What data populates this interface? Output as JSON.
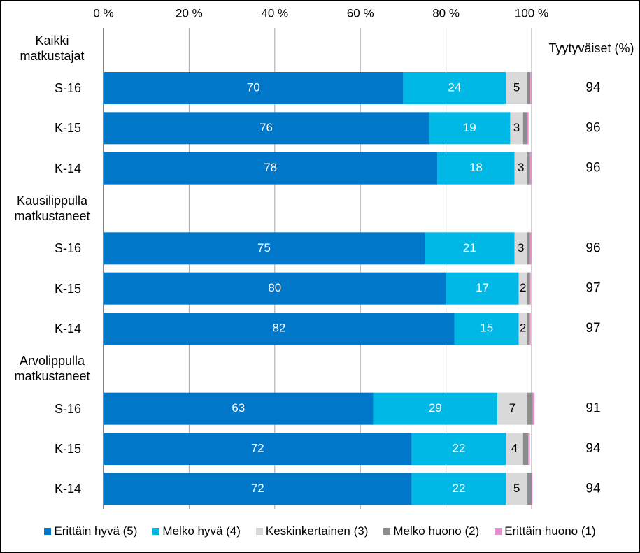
{
  "chart_data": {
    "type": "stacked_barh",
    "categories": [
      "Kaikki matkustajat",
      "S-16",
      "K-15",
      "K-14",
      "Kausilippulla matkustaneet",
      "S-16",
      "K-15",
      "K-14",
      "Arvolippulla matkustaneet",
      "S-16",
      "K-15",
      "K-14"
    ],
    "series": [
      {
        "name": "Erittäin hyvä (5)",
        "color": "#0077c8",
        "values": [
          null,
          70,
          76,
          78,
          null,
          75,
          80,
          82,
          null,
          63,
          72,
          72
        ]
      },
      {
        "name": "Melko hyvä (4)",
        "color": "#00b8e6",
        "values": [
          null,
          24,
          19,
          18,
          null,
          21,
          17,
          15,
          null,
          29,
          22,
          22
        ]
      },
      {
        "name": "Keskinkertainen (3)",
        "color": "#d9d9d9",
        "values": [
          null,
          5,
          3,
          3,
          null,
          3,
          2,
          2,
          null,
          7,
          4,
          5
        ]
      },
      {
        "name": "Melko huono (2)",
        "color": "#8c8c8c",
        "values": [
          null,
          0.7,
          1,
          0.6,
          null,
          0.6,
          0.6,
          0.5,
          null,
          1.3,
          1.2,
          1
        ]
      },
      {
        "name": "Erittäin huono (1)",
        "color": "#e58fd0",
        "values": [
          null,
          0.3,
          0.3,
          0.4,
          null,
          0.3,
          0.2,
          0.3,
          null,
          0.4,
          0.4,
          0.2
        ]
      }
    ],
    "xlim": [
      0,
      100
    ],
    "xticks": [
      {
        "value": 0,
        "label": "0 %"
      },
      {
        "value": 20,
        "label": "20 %"
      },
      {
        "value": 40,
        "label": "40 %"
      },
      {
        "value": 60,
        "label": "60 %"
      },
      {
        "value": 80,
        "label": "80 %"
      },
      {
        "value": 100,
        "label": "100 %"
      }
    ],
    "grid": true,
    "legend": "bottom",
    "satisfied": {
      "title": "Tyytyväiset (%)",
      "values": [
        null,
        94,
        96,
        96,
        null,
        96,
        97,
        97,
        null,
        91,
        94,
        94
      ]
    }
  }
}
